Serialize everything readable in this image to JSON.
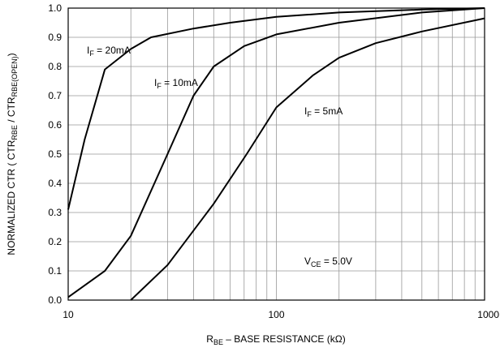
{
  "chart_data": {
    "type": "line",
    "x_label": [
      {
        "text": "R"
      },
      {
        "sub": "BE"
      },
      {
        "text": " – BASE RESISTANCE (kΩ)"
      }
    ],
    "y_label": [
      {
        "text": "NORMALIZED CTR ( CTR"
      },
      {
        "sub": "RBE"
      },
      {
        "text": " / CTR"
      },
      {
        "sub": "RBE(OPEN)"
      },
      {
        "text": ")"
      }
    ],
    "annotation": [
      {
        "text": "V"
      },
      {
        "sub": "CE"
      },
      {
        "text": " = 5.0V"
      }
    ],
    "xscale": "log",
    "xlim": [
      10,
      1000
    ],
    "ylim": [
      0,
      1.0
    ],
    "xticks": [
      10,
      100,
      1000
    ],
    "xminor": [
      20,
      30,
      40,
      50,
      60,
      70,
      80,
      90,
      200,
      300,
      400,
      500,
      600,
      700,
      800,
      900
    ],
    "yticks": [
      {
        "value": 0,
        "label": "0.0"
      },
      0.1,
      0.2,
      0.3,
      0.4,
      0.5,
      0.6,
      0.7,
      0.8,
      0.9,
      {
        "value": 1.0,
        "label": "1.0"
      }
    ],
    "grid": true,
    "series": [
      {
        "label": [
          {
            "text": "I"
          },
          {
            "sub": "F"
          },
          {
            "text": " = 20mA"
          }
        ],
        "color": "#000000",
        "x": [
          10,
          12,
          15,
          20,
          25,
          40,
          60,
          100,
          200,
          500,
          1000
        ],
        "values": [
          0.31,
          0.55,
          0.79,
          0.86,
          0.9,
          0.93,
          0.95,
          0.97,
          0.985,
          0.995,
          1.0
        ]
      },
      {
        "label": [
          {
            "text": "I"
          },
          {
            "sub": "F"
          },
          {
            "text": " = 10mA"
          }
        ],
        "color": "#000000",
        "x": [
          10,
          15,
          20,
          30,
          40,
          50,
          70,
          100,
          200,
          500,
          1000
        ],
        "values": [
          0.01,
          0.1,
          0.22,
          0.5,
          0.7,
          0.8,
          0.87,
          0.91,
          0.95,
          0.985,
          1.0
        ]
      },
      {
        "label": [
          {
            "text": "I"
          },
          {
            "sub": "F"
          },
          {
            "text": " = 5mA"
          }
        ],
        "color": "#000000",
        "x": [
          20,
          30,
          50,
          72,
          100,
          150,
          200,
          300,
          500,
          1000
        ],
        "values": [
          0.0,
          0.12,
          0.33,
          0.5,
          0.66,
          0.77,
          0.83,
          0.88,
          0.92,
          0.965
        ]
      }
    ]
  }
}
